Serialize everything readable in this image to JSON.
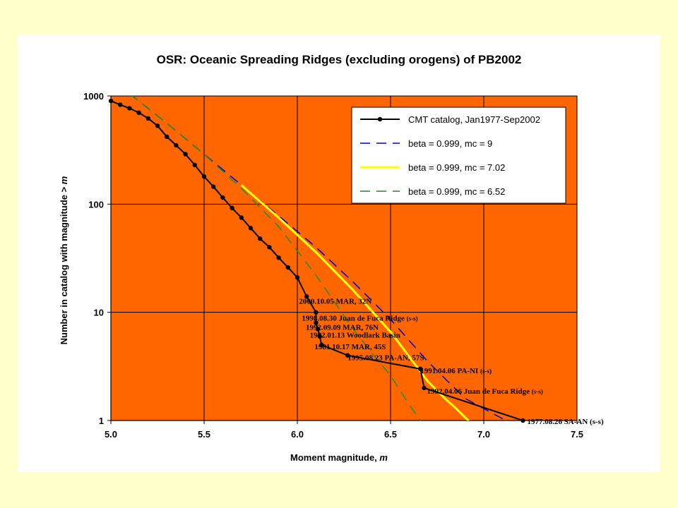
{
  "chart_data": {
    "type": "line",
    "title": "OSR: Oceanic Spreading Ridges (excluding orogens) of PB2002",
    "xlabel": "Moment magnitude, ",
    "xlabel_italic": "m",
    "ylabel": "Number in catalog with magnitude  >  ",
    "ylabel_italic": "m",
    "xlim": [
      5.0,
      7.5
    ],
    "ylim": [
      1,
      1000
    ],
    "y_scale": "log",
    "grid": true,
    "x_ticks": [
      "5.0",
      "5.5",
      "6.0",
      "6.5",
      "7.0",
      "7.5"
    ],
    "x_tick_values": [
      5.0,
      5.5,
      6.0,
      6.5,
      7.0,
      7.5
    ],
    "y_ticks": [
      "1",
      "10",
      "100",
      "1000"
    ],
    "y_tick_values": [
      1,
      10,
      100,
      1000
    ],
    "plot_background": "#ff6600",
    "legend_position": "top-right",
    "series": [
      {
        "name": "CMT catalog, Jan1977-Sep2002",
        "color": "#000000",
        "style": "solid-markers",
        "x": [
          5.0,
          5.05,
          5.1,
          5.15,
          5.2,
          5.25,
          5.3,
          5.35,
          5.4,
          5.45,
          5.5,
          5.55,
          5.6,
          5.65,
          5.7,
          5.75,
          5.8,
          5.85,
          5.9,
          5.95,
          6.0,
          6.05,
          6.1,
          6.1,
          6.11,
          6.12,
          6.13,
          6.27,
          6.66,
          6.68,
          7.21
        ],
        "y": [
          900,
          830,
          770,
          700,
          620,
          530,
          420,
          350,
          290,
          230,
          180,
          145,
          115,
          92,
          75,
          60,
          48,
          40,
          32,
          26,
          21,
          14,
          10,
          8,
          7,
          6,
          5,
          4,
          3,
          2,
          1
        ]
      },
      {
        "name": "beta = 0.999, mc = 9",
        "color": "#0000cc",
        "style": "dashed",
        "x": [
          5.1,
          5.3,
          5.5,
          5.7,
          5.9,
          6.1,
          6.3,
          6.5,
          6.7,
          6.9,
          7.1,
          7.15
        ],
        "y": [
          1050,
          560,
          290,
          150,
          78,
          40,
          19,
          8.6,
          3.5,
          1.6,
          1.04,
          0.9
        ]
      },
      {
        "name": "beta = 0.999, mc = 7.02",
        "color": "#ffff00",
        "style": "solid",
        "x": [
          5.7,
          5.9,
          6.1,
          6.3,
          6.5,
          6.7,
          6.8,
          6.85,
          6.93
        ],
        "y": [
          150,
          75,
          36,
          16,
          6.6,
          2.3,
          1.55,
          1.3,
          0.95
        ]
      },
      {
        "name": "beta = 0.999, mc = 6.52",
        "color": "#228b22",
        "style": "dashed",
        "x": [
          5.1,
          5.3,
          5.5,
          5.7,
          5.9,
          6.1,
          6.3,
          6.4,
          6.5,
          6.6,
          6.67
        ],
        "y": [
          1050,
          560,
          290,
          140,
          62,
          22,
          7.0,
          4.2,
          2.6,
          1.4,
          0.95
        ]
      }
    ],
    "annotations": [
      {
        "text": "2000.10.05 MAR, 32N",
        "suffix": "",
        "x": 6.1,
        "y": 10
      },
      {
        "text": "1998.08.30 Juan de Fuca Ridge ",
        "suffix": "(s-s)",
        "x": 6.1,
        "y": 8
      },
      {
        "text": "1992.09.09 MAR, 76N",
        "suffix": "",
        "x": 6.11,
        "y": 7
      },
      {
        "text": "1982.01.13 Woodlark Basin",
        "suffix": "",
        "x": 6.12,
        "y": 6
      },
      {
        "text": "1981.10.17 MAR, 45S",
        "suffix": "",
        "x": 6.13,
        "y": 5
      },
      {
        "text": "1995.08.23 PA-AN, 57S",
        "suffix": "",
        "x": 6.27,
        "y": 4
      },
      {
        "text": "1991.04.06 PA-NI ",
        "suffix": "(s-s)",
        "x": 6.66,
        "y": 3
      },
      {
        "text": "1992.04.06 Juan de Fuca Ridge ",
        "suffix": "(s-s)",
        "x": 6.68,
        "y": 2
      },
      {
        "text": "1977.08.26 SA-AN (s-s)",
        "suffix": "",
        "x": 7.21,
        "y": 1
      }
    ]
  }
}
